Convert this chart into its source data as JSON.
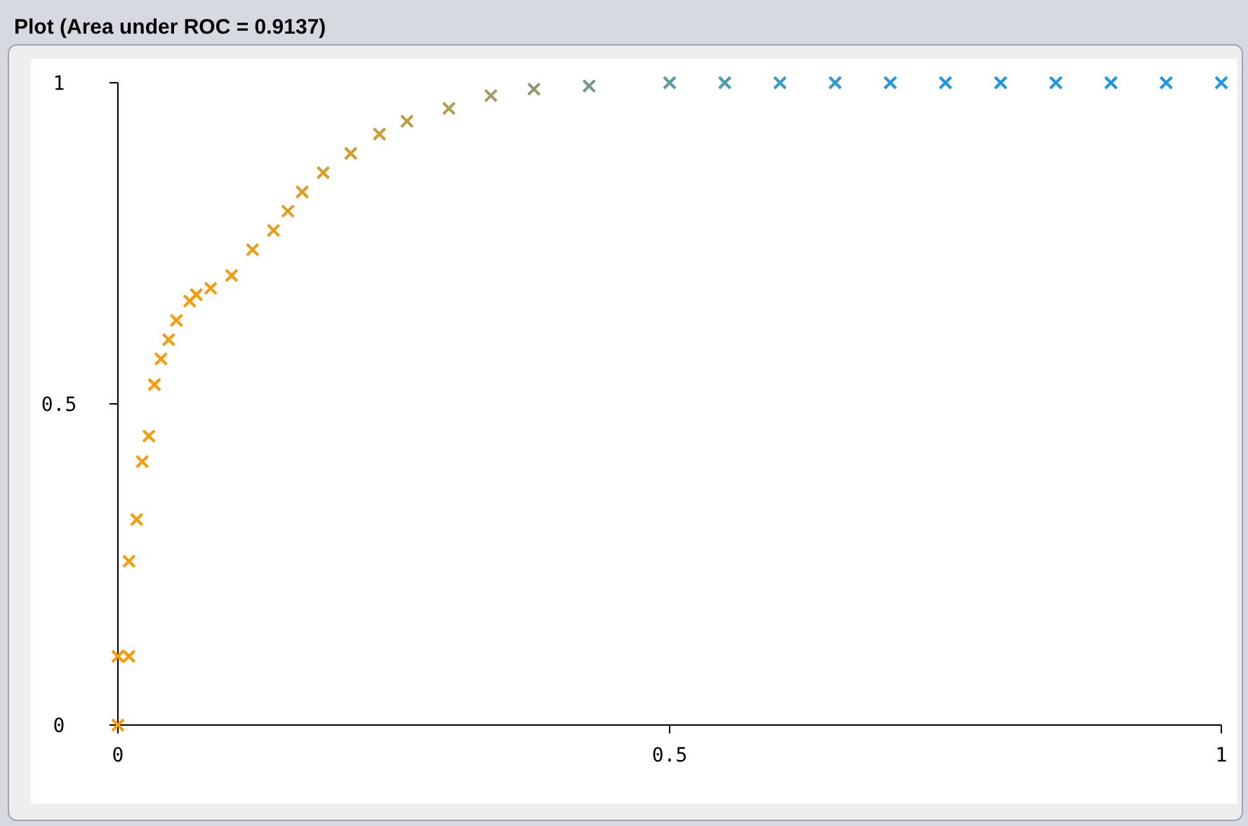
{
  "chart_data": {
    "type": "scatter",
    "title": "Plot (Area under ROC = 0.9137)",
    "marker": "cross",
    "x": [
      0,
      0,
      0.01,
      0.01,
      0.017,
      0.022,
      0.028,
      0.033,
      0.039,
      0.046,
      0.053,
      0.065,
      0.071,
      0.084,
      0.103,
      0.122,
      0.141,
      0.154,
      0.167,
      0.186,
      0.211,
      0.237,
      0.262,
      0.3,
      0.338,
      0.377,
      0.427,
      0.5,
      0.55,
      0.6,
      0.65,
      0.7,
      0.75,
      0.8,
      0.85,
      0.9,
      0.95,
      1
    ],
    "values": [
      0,
      0.107,
      0.107,
      0.255,
      0.32,
      0.41,
      0.45,
      0.53,
      0.57,
      0.6,
      0.63,
      0.66,
      0.67,
      0.68,
      0.7,
      0.74,
      0.77,
      0.8,
      0.83,
      0.86,
      0.89,
      0.92,
      0.94,
      0.96,
      0.98,
      0.99,
      0.995,
      1,
      1,
      1,
      1,
      1,
      1,
      1,
      1,
      1,
      1,
      1
    ],
    "colors": [
      "#ff9900",
      "#ff9900",
      "#ff9900",
      "#ff9900",
      "#ff9900",
      "#ff9900",
      "#ff9900",
      "#ff9900",
      "#ff9900",
      "#ff9900",
      "#ff9900",
      "#ff9900",
      "#fa9a05",
      "#f89a08",
      "#f49b0c",
      "#f09b10",
      "#ea9c16",
      "#e69c1a",
      "#e29c1e",
      "#dc9c24",
      "#d49c2c",
      "#cc9c34",
      "#c09c40",
      "#b09c50",
      "#a09c60",
      "#8c9a70",
      "#709a88",
      "#5a9aa0",
      "#4a9ab4",
      "#3a9ac6",
      "#2e98d2",
      "#2498dc",
      "#2097e2",
      "#1e96e6",
      "#1e96e6",
      "#1e96e6",
      "#1e96e6",
      "#1e96e6"
    ],
    "xlim": [
      0,
      1
    ],
    "ylim": [
      0,
      1
    ],
    "xticks": [
      0,
      0.5,
      1
    ],
    "yticks": [
      0,
      0.5,
      1
    ],
    "grid": false
  }
}
